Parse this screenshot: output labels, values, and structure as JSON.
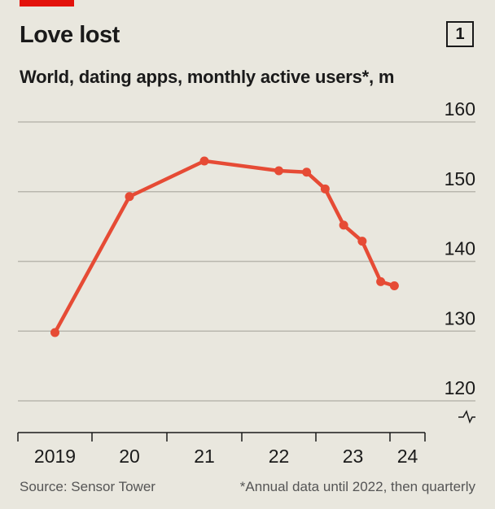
{
  "header": {
    "title": "Love lost",
    "chart_number": "1",
    "subtitle": "World, dating apps, monthly active users*, m"
  },
  "footer": {
    "source": "Source: Sensor Tower",
    "note": "*Annual data until 2022, then quarterly"
  },
  "colors": {
    "line": "#e64b35",
    "grid": "#b9b7ae",
    "background": "#e9e7de",
    "brand_tag": "#e3120b"
  },
  "chart_data": {
    "type": "line",
    "title": "Love lost",
    "subtitle": "World, dating apps, monthly active users*, m",
    "x_tick_labels": [
      "2019",
      "20",
      "21",
      "22",
      "23",
      "24"
    ],
    "y_tick_labels": [
      "120",
      "130",
      "140",
      "150",
      "160"
    ],
    "ylim": [
      120,
      160
    ],
    "y_axis_position": "right",
    "y_axis_break": true,
    "grid": "horizontal",
    "series": [
      {
        "values": [
          {
            "x": "2019",
            "y": 129.8
          },
          {
            "x": "2020",
            "y": 149.3
          },
          {
            "x": "2021",
            "y": 154.4
          },
          {
            "x": "2022",
            "y": 153.0
          },
          {
            "x": "2022 Q4",
            "y": 152.8
          },
          {
            "x": "2023 Q1",
            "y": 150.4
          },
          {
            "x": "2023 Q2",
            "y": 145.2
          },
          {
            "x": "2023 Q3",
            "y": 142.9
          },
          {
            "x": "2023 Q4",
            "y": 137.1
          },
          {
            "x": "2024 Q1",
            "y": 136.5
          }
        ]
      }
    ]
  }
}
